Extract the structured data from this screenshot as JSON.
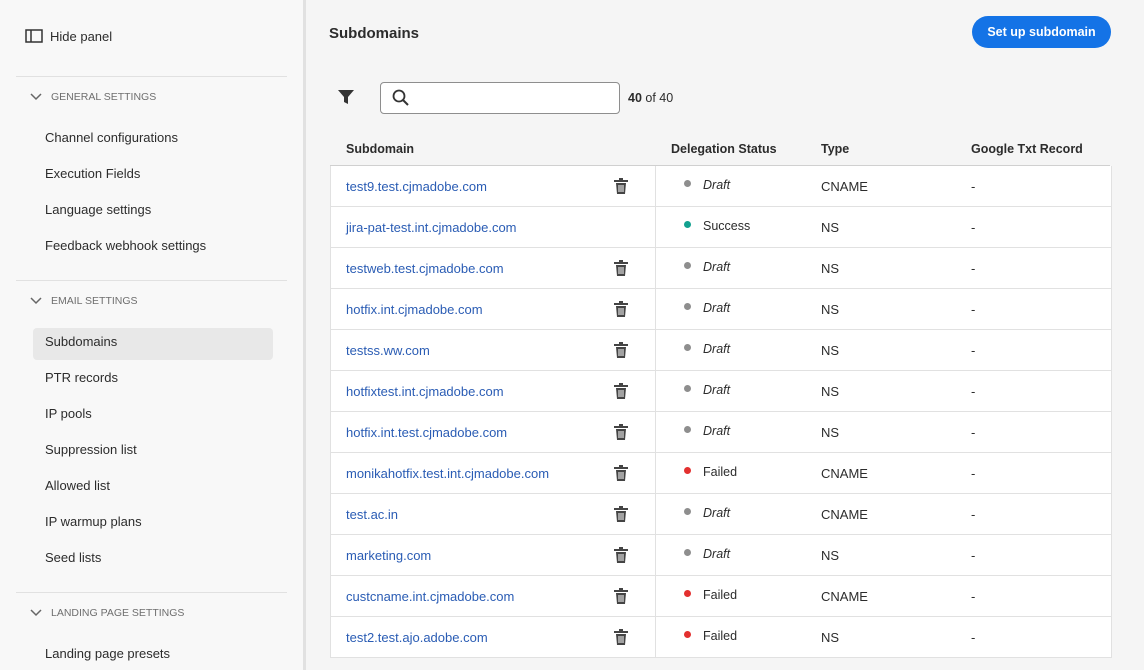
{
  "sidebar": {
    "hide_panel": "Hide panel",
    "sections": [
      {
        "title": "GENERAL SETTINGS",
        "items": [
          "Channel configurations",
          "Execution Fields",
          "Language settings",
          "Feedback webhook settings"
        ]
      },
      {
        "title": "EMAIL SETTINGS",
        "items": [
          "Subdomains",
          "PTR records",
          "IP pools",
          "Suppression list",
          "Allowed list",
          "IP warmup plans",
          "Seed lists"
        ],
        "selected": 0
      },
      {
        "title": "LANDING PAGE SETTINGS",
        "items": [
          "Landing page presets"
        ]
      }
    ]
  },
  "main": {
    "title": "Subdomains",
    "button": "Set up subdomain",
    "count_shown": "40",
    "count_rest": "of 40",
    "table": {
      "headers": [
        "Subdomain",
        "Delegation Status",
        "Type",
        "Google Txt Record"
      ],
      "rows": [
        {
          "subdomain": "test9.test.cjmadobe.com",
          "status": "Draft",
          "status_color": "#8e8e8e",
          "status_italic": true,
          "type": "CNAME",
          "record": "-",
          "deletable": true
        },
        {
          "subdomain": "jira-pat-test.int.cjmadobe.com",
          "status": "Success",
          "status_color": "#12a18f",
          "status_italic": false,
          "type": "NS",
          "record": "-",
          "deletable": false
        },
        {
          "subdomain": "testweb.test.cjmadobe.com",
          "status": "Draft",
          "status_color": "#8e8e8e",
          "status_italic": true,
          "type": "NS",
          "record": "-",
          "deletable": true
        },
        {
          "subdomain": "hotfix.int.cjmadobe.com",
          "status": "Draft",
          "status_color": "#8e8e8e",
          "status_italic": true,
          "type": "NS",
          "record": "-",
          "deletable": true
        },
        {
          "subdomain": "testss.ww.com",
          "status": "Draft",
          "status_color": "#8e8e8e",
          "status_italic": true,
          "type": "NS",
          "record": "-",
          "deletable": true
        },
        {
          "subdomain": "hotfixtest.int.cjmadobe.com",
          "status": "Draft",
          "status_color": "#8e8e8e",
          "status_italic": true,
          "type": "NS",
          "record": "-",
          "deletable": true
        },
        {
          "subdomain": "hotfix.int.test.cjmadobe.com",
          "status": "Draft",
          "status_color": "#8e8e8e",
          "status_italic": true,
          "type": "NS",
          "record": "-",
          "deletable": true
        },
        {
          "subdomain": "monikahotfix.test.int.cjmadobe.com",
          "status": "Failed",
          "status_color": "#e3302f",
          "status_italic": false,
          "type": "CNAME",
          "record": "-",
          "deletable": true
        },
        {
          "subdomain": "test.ac.in",
          "status": "Draft",
          "status_color": "#8e8e8e",
          "status_italic": true,
          "type": "CNAME",
          "record": "-",
          "deletable": true
        },
        {
          "subdomain": "marketing.com",
          "status": "Draft",
          "status_color": "#8e8e8e",
          "status_italic": true,
          "type": "NS",
          "record": "-",
          "deletable": true
        },
        {
          "subdomain": "custcname.int.cjmadobe.com",
          "status": "Failed",
          "status_color": "#e3302f",
          "status_italic": false,
          "type": "CNAME",
          "record": "-",
          "deletable": true
        },
        {
          "subdomain": "test2.test.ajo.adobe.com",
          "status": "Failed",
          "status_color": "#e3302f",
          "status_italic": false,
          "type": "NS",
          "record": "-",
          "deletable": true
        }
      ]
    }
  }
}
